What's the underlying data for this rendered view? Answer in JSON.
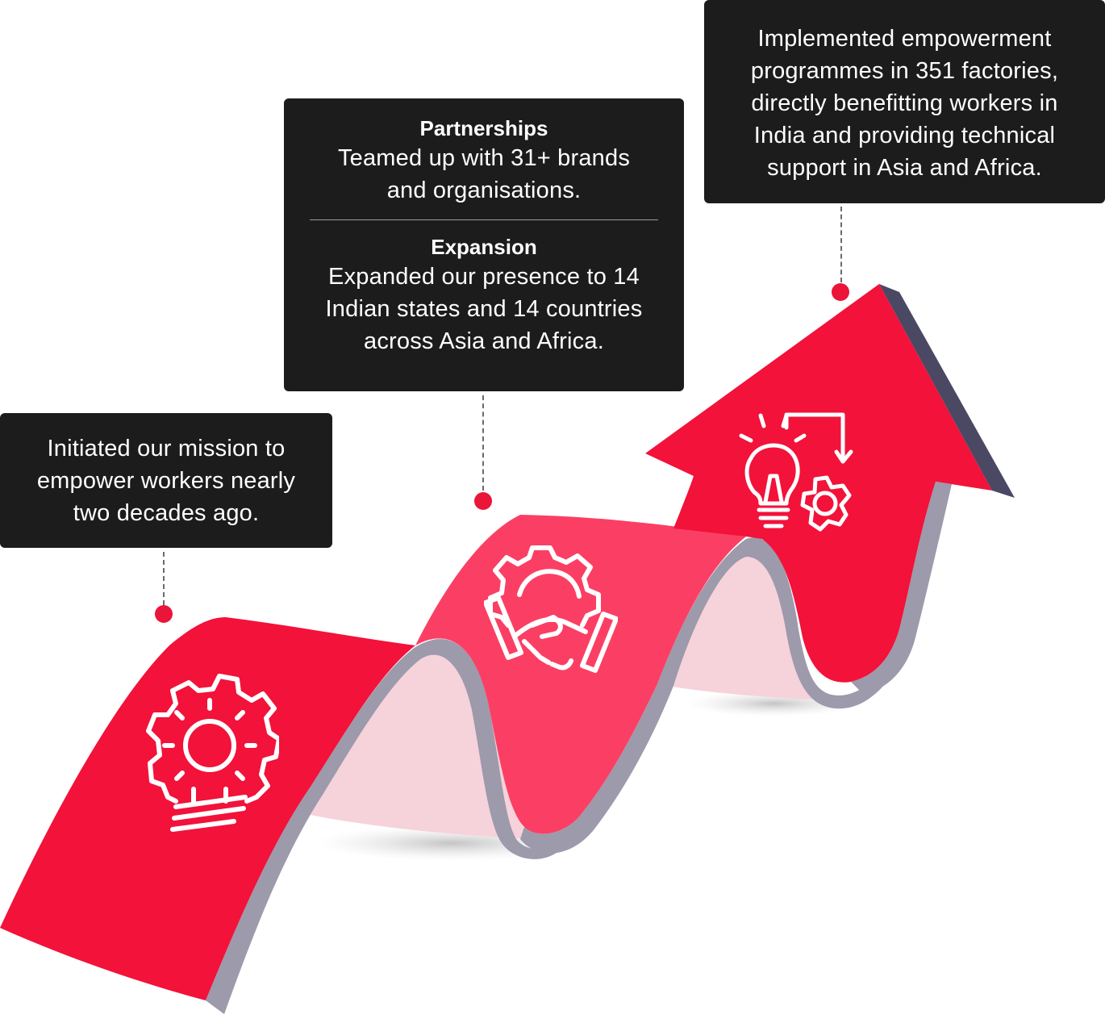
{
  "colors": {
    "ribbon_red": "#f2123a",
    "ribbon_pink": "#fb3f64",
    "ribbon_side": "#9c9aab",
    "arrow_side": "#4a4863",
    "inner_tint": "#f6d2da",
    "callout_bg": "#1c1c1c",
    "dot": "#ea1539"
  },
  "milestones": [
    {
      "text": "Initiated our mission to\nempower workers nearly\ntwo decades ago.",
      "icon": "gear-lightbulb-icon"
    },
    {
      "sections": [
        {
          "heading": "Partnerships",
          "text": "Teamed up with 31+ brands\nand organisations."
        },
        {
          "heading": "Expansion",
          "text": "Expanded our presence to 14\nIndian states and 14 countries\nacross Asia and Africa."
        }
      ],
      "icon": "handshake-gear-icon"
    },
    {
      "text": "Implemented empowerment\nprogrammes in 351 factories,\ndirectly benefitting workers in\nIndia and providing technical\nsupport in Asia and Africa.",
      "icon": "lightbulb-gear-process-icon"
    }
  ]
}
